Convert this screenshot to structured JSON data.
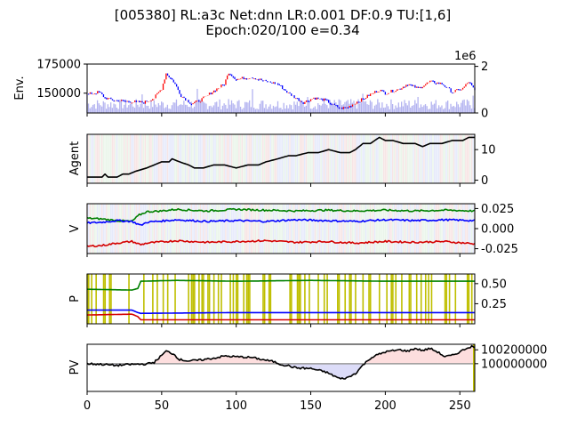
{
  "chart_data": [
    {
      "type": "line",
      "title_lines": [
        "[005380] RL:a3c Net:dnn LR:0.001 DF:0.9 TU:[1,6]",
        "Epoch:020/100 e=0.34"
      ],
      "ylabel": "Env.",
      "xlim": [
        0,
        260
      ],
      "ylim": [
        133000,
        175000
      ],
      "yticks": [
        "150000",
        "175000"
      ],
      "y2ticks": [
        "0",
        "2"
      ],
      "y2_offset_label": "1e6",
      "series": [
        {
          "kind": "price",
          "anchors": [
            [
              0,
              149000
            ],
            [
              8,
              151000
            ],
            [
              12,
              146000
            ],
            [
              18,
              144000
            ],
            [
              28,
              143000
            ],
            [
              38,
              142000
            ],
            [
              45,
              146000
            ],
            [
              50,
              154000
            ],
            [
              53,
              167000
            ],
            [
              58,
              160000
            ],
            [
              63,
              148000
            ],
            [
              70,
              141000
            ],
            [
              76,
              144000
            ],
            [
              85,
              152000
            ],
            [
              92,
              158000
            ],
            [
              95,
              168000
            ],
            [
              100,
              162000
            ],
            [
              110,
              164000
            ],
            [
              120,
              160000
            ],
            [
              128,
              158000
            ],
            [
              135,
              150000
            ],
            [
              145,
              142000
            ],
            [
              152,
              146000
            ],
            [
              160,
              144000
            ],
            [
              165,
              140000
            ],
            [
              170,
              137000
            ],
            [
              175,
              138000
            ],
            [
              180,
              142000
            ],
            [
              185,
              145000
            ],
            [
              190,
              149000
            ],
            [
              196,
              153000
            ],
            [
              200,
              150000
            ],
            [
              210,
              154000
            ],
            [
              215,
              158000
            ],
            [
              222,
              154000
            ],
            [
              230,
              160000
            ],
            [
              238,
              158000
            ],
            [
              245,
              151000
            ],
            [
              252,
              154000
            ],
            [
              256,
              160000
            ],
            [
              260,
              152000
            ]
          ]
        },
        {
          "kind": "volume",
          "scale": "1e6 (0-2)"
        }
      ],
      "colors": {
        "up": "#ff0000",
        "down": "#0000ff",
        "volume": "#b3b3f0"
      }
    },
    {
      "type": "line",
      "ylabel": "Agent",
      "xlim": [
        0,
        260
      ],
      "ylim": [
        -1,
        15
      ],
      "yticks": [
        "0",
        "10"
      ],
      "series": [
        {
          "name": "",
          "color": "#000000",
          "points": [
            [
              0,
              1
            ],
            [
              5,
              1
            ],
            [
              10,
              1
            ],
            [
              12,
              2
            ],
            [
              14,
              1
            ],
            [
              20,
              1
            ],
            [
              24,
              2
            ],
            [
              28,
              2
            ],
            [
              33,
              3
            ],
            [
              40,
              4
            ],
            [
              45,
              5
            ],
            [
              50,
              6
            ],
            [
              55,
              6
            ],
            [
              57,
              7
            ],
            [
              62,
              6
            ],
            [
              68,
              5
            ],
            [
              72,
              4
            ],
            [
              78,
              4
            ],
            [
              85,
              5
            ],
            [
              92,
              5
            ],
            [
              100,
              4
            ],
            [
              108,
              5
            ],
            [
              115,
              5
            ],
            [
              120,
              6
            ],
            [
              128,
              7
            ],
            [
              135,
              8
            ],
            [
              140,
              8
            ],
            [
              148,
              9
            ],
            [
              155,
              9
            ],
            [
              162,
              10
            ],
            [
              170,
              9
            ],
            [
              176,
              9
            ],
            [
              180,
              10
            ],
            [
              185,
              12
            ],
            [
              190,
              12
            ],
            [
              196,
              14
            ],
            [
              200,
              13
            ],
            [
              205,
              13
            ],
            [
              212,
              12
            ],
            [
              220,
              12
            ],
            [
              225,
              11
            ],
            [
              230,
              12
            ],
            [
              238,
              12
            ],
            [
              245,
              13
            ],
            [
              252,
              13
            ],
            [
              256,
              14
            ],
            [
              260,
              14
            ]
          ]
        }
      ]
    },
    {
      "type": "line",
      "ylabel": "V",
      "xlim": [
        0,
        260
      ],
      "ylim": [
        -0.031,
        0.031
      ],
      "yticks": [
        "-0.025",
        "0.000",
        "0.025"
      ],
      "series": [
        {
          "name": "",
          "color": "#008000",
          "points": [
            [
              0,
              0.013
            ],
            [
              10,
              0.012
            ],
            [
              20,
              0.01
            ],
            [
              30,
              0.009
            ],
            [
              35,
              0.017
            ],
            [
              40,
              0.021
            ],
            [
              50,
              0.022
            ],
            [
              60,
              0.024
            ],
            [
              80,
              0.022
            ],
            [
              100,
              0.024
            ],
            [
              120,
              0.023
            ],
            [
              140,
              0.022
            ],
            [
              160,
              0.023
            ],
            [
              180,
              0.022
            ],
            [
              200,
              0.023
            ],
            [
              220,
              0.022
            ],
            [
              240,
              0.023
            ],
            [
              260,
              0.022
            ]
          ]
        },
        {
          "name": "",
          "color": "#0000ff",
          "points": [
            [
              0,
              0.007
            ],
            [
              10,
              0.008
            ],
            [
              20,
              0.01
            ],
            [
              30,
              0.009
            ],
            [
              36,
              0.004
            ],
            [
              40,
              0.008
            ],
            [
              60,
              0.011
            ],
            [
              80,
              0.009
            ],
            [
              100,
              0.01
            ],
            [
              120,
              0.009
            ],
            [
              140,
              0.011
            ],
            [
              160,
              0.01
            ],
            [
              180,
              0.009
            ],
            [
              200,
              0.011
            ],
            [
              220,
              0.01
            ],
            [
              240,
              0.011
            ],
            [
              260,
              0.01
            ]
          ]
        },
        {
          "name": "",
          "color": "#d40000",
          "points": [
            [
              0,
              -0.022
            ],
            [
              10,
              -0.021
            ],
            [
              20,
              -0.018
            ],
            [
              30,
              -0.016
            ],
            [
              36,
              -0.02
            ],
            [
              40,
              -0.018
            ],
            [
              60,
              -0.015
            ],
            [
              80,
              -0.017
            ],
            [
              100,
              -0.016
            ],
            [
              120,
              -0.015
            ],
            [
              140,
              -0.017
            ],
            [
              160,
              -0.016
            ],
            [
              180,
              -0.018
            ],
            [
              200,
              -0.016
            ],
            [
              220,
              -0.017
            ],
            [
              240,
              -0.016
            ],
            [
              260,
              -0.019
            ]
          ]
        }
      ]
    },
    {
      "type": "line",
      "ylabel": "P",
      "xlim": [
        0,
        260
      ],
      "ylim": [
        0.0,
        0.62
      ],
      "yticks": [
        "0.25",
        "0.50"
      ],
      "series": [
        {
          "name": "",
          "color": "#008000",
          "points": [
            [
              0,
              0.43
            ],
            [
              30,
              0.42
            ],
            [
              34,
              0.44
            ],
            [
              36,
              0.53
            ],
            [
              60,
              0.54
            ],
            [
              100,
              0.53
            ],
            [
              150,
              0.54
            ],
            [
              200,
              0.53
            ],
            [
              260,
              0.53
            ]
          ]
        },
        {
          "name": "",
          "color": "#0000ff",
          "points": [
            [
              0,
              0.17
            ],
            [
              30,
              0.17
            ],
            [
              34,
              0.14
            ],
            [
              36,
              0.13
            ],
            [
              100,
              0.14
            ],
            [
              200,
              0.14
            ],
            [
              260,
              0.14
            ]
          ]
        },
        {
          "name": "",
          "color": "#d40000",
          "points": [
            [
              0,
              0.11
            ],
            [
              30,
              0.12
            ],
            [
              34,
              0.09
            ],
            [
              36,
              0.05
            ],
            [
              100,
              0.05
            ],
            [
              200,
              0.05
            ],
            [
              260,
              0.05
            ]
          ]
        }
      ],
      "colors": {
        "action_bars": "#bfbf00"
      }
    },
    {
      "type": "area",
      "ylabel": "PV",
      "xlim": [
        0,
        260
      ],
      "ylim": [
        99600000,
        100280000
      ],
      "yticks": [
        "100000000",
        "100200000"
      ],
      "baseline": 100000000,
      "series": [
        {
          "name": "",
          "color": "#000000",
          "points": [
            [
              0,
              100000000
            ],
            [
              10,
              99990000
            ],
            [
              20,
              99975000
            ],
            [
              30,
              99990000
            ],
            [
              40,
              99995000
            ],
            [
              45,
              100020000
            ],
            [
              50,
              100120000
            ],
            [
              53,
              100180000
            ],
            [
              58,
              100140000
            ],
            [
              62,
              100060000
            ],
            [
              68,
              100040000
            ],
            [
              75,
              100050000
            ],
            [
              85,
              100080000
            ],
            [
              92,
              100110000
            ],
            [
              100,
              100100000
            ],
            [
              110,
              100090000
            ],
            [
              115,
              100070000
            ],
            [
              120,
              100050000
            ],
            [
              125,
              100030000
            ],
            [
              130,
              99990000
            ],
            [
              135,
              99970000
            ],
            [
              140,
              99940000
            ],
            [
              150,
              99930000
            ],
            [
              160,
              99880000
            ],
            [
              165,
              99830000
            ],
            [
              170,
              99780000
            ],
            [
              175,
              99800000
            ],
            [
              180,
              99860000
            ],
            [
              185,
              99980000
            ],
            [
              190,
              100080000
            ],
            [
              195,
              100130000
            ],
            [
              200,
              100170000
            ],
            [
              210,
              100200000
            ],
            [
              215,
              100180000
            ],
            [
              220,
              100220000
            ],
            [
              225,
              100190000
            ],
            [
              230,
              100220000
            ],
            [
              235,
              100170000
            ],
            [
              240,
              100100000
            ],
            [
              245,
              100120000
            ],
            [
              250,
              100170000
            ],
            [
              255,
              100230000
            ],
            [
              258,
              100250000
            ],
            [
              260,
              100230000
            ]
          ]
        }
      ],
      "colors": {
        "gain": "#fddede",
        "loss": "#dcdcf8",
        "baseline": "#999999"
      }
    }
  ],
  "x_axis": {
    "ticks": [
      "0",
      "50",
      "100",
      "150",
      "200",
      "250"
    ]
  }
}
